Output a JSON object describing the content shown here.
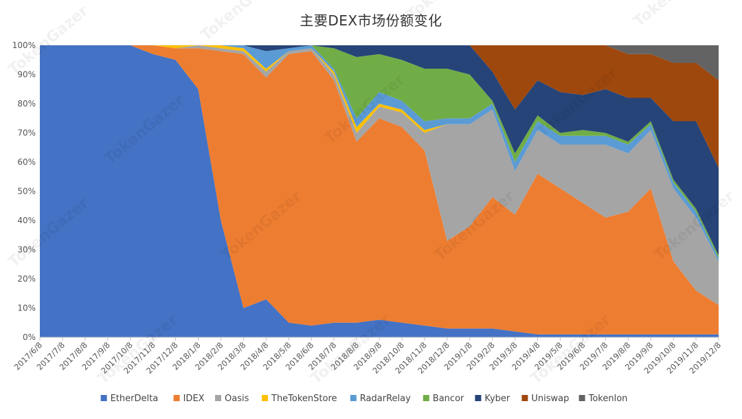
{
  "chart_data": {
    "type": "area",
    "title": "主要DEX市场份额变化",
    "stacked": "percent",
    "x": [
      "2017/6/8",
      "2017/7/8",
      "2017/8/8",
      "2017/9/8",
      "2017/10/8",
      "2017/11/8",
      "2017/12/8",
      "2018/1/8",
      "2018/2/8",
      "2018/3/8",
      "2018/4/8",
      "2018/5/8",
      "2018/6/8",
      "2018/7/8",
      "2018/8/8",
      "2018/9/8",
      "2018/10/8",
      "2018/11/8",
      "2018/12/8",
      "2019/1/8",
      "2019/2/8",
      "2019/3/8",
      "2019/4/8",
      "2019/5/8",
      "2019/6/8",
      "2019/7/8",
      "2019/8/8",
      "2019/9/8",
      "2019/10/8",
      "2019/11/8",
      "2019/12/8"
    ],
    "yticks": [
      "0%",
      "10%",
      "20%",
      "30%",
      "40%",
      "50%",
      "60%",
      "70%",
      "80%",
      "90%",
      "100%"
    ],
    "ylim": [
      0,
      100
    ],
    "legend_position": "bottom",
    "series": [
      {
        "name": "EtherDelta",
        "color": "#4472C4",
        "values": [
          100,
          100,
          100,
          100,
          100,
          97,
          95,
          85,
          40,
          10,
          13,
          5,
          4,
          5,
          5,
          6,
          5,
          4,
          3,
          3,
          3,
          2,
          1,
          1,
          1,
          1,
          1,
          1,
          1,
          1,
          1
        ]
      },
      {
        "name": "IDEX",
        "color": "#ED7D31",
        "values": [
          0,
          0,
          0,
          0,
          0,
          3,
          4,
          14,
          58,
          87,
          76,
          92,
          94,
          83,
          62,
          69,
          67,
          60,
          30,
          35,
          45,
          40,
          55,
          50,
          45,
          40,
          42,
          50,
          25,
          15,
          10
        ]
      },
      {
        "name": "Oasis",
        "color": "#A5A5A5",
        "values": [
          0,
          0,
          0,
          0,
          0,
          0,
          0,
          1,
          1,
          1,
          2,
          1,
          1,
          2,
          3,
          4,
          5,
          6,
          40,
          35,
          30,
          15,
          15,
          15,
          20,
          25,
          20,
          20,
          25,
          25,
          15
        ]
      },
      {
        "name": "TheTokenStore",
        "color": "#FFC000",
        "values": [
          0,
          0,
          0,
          0,
          0,
          0,
          1,
          0,
          1,
          1,
          1,
          0,
          0,
          1,
          2,
          1,
          1,
          1,
          0,
          0,
          0,
          0,
          0,
          0,
          0,
          0,
          0,
          0,
          0,
          0,
          0
        ]
      },
      {
        "name": "RadarRelay",
        "color": "#5B9BD5",
        "values": [
          0,
          0,
          0,
          0,
          0,
          0,
          0,
          0,
          0,
          1,
          6,
          1,
          1,
          1,
          3,
          4,
          3,
          3,
          2,
          2,
          2,
          3,
          3,
          3,
          3,
          3,
          3,
          2,
          2,
          2,
          1
        ]
      },
      {
        "name": "Bancor",
        "color": "#70AD47",
        "values": [
          0,
          0,
          0,
          0,
          0,
          0,
          0,
          0,
          0,
          0,
          0,
          0,
          0,
          7,
          21,
          13,
          14,
          18,
          17,
          15,
          1,
          3,
          2,
          1,
          2,
          1,
          1,
          1,
          1,
          1,
          1
        ]
      },
      {
        "name": "Kyber",
        "color": "#264478",
        "values": [
          0,
          0,
          0,
          0,
          0,
          0,
          0,
          0,
          0,
          0,
          2,
          1,
          0,
          1,
          4,
          3,
          5,
          8,
          8,
          10,
          10,
          15,
          12,
          14,
          12,
          15,
          15,
          8,
          20,
          30,
          30
        ]
      },
      {
        "name": "Uniswap",
        "color": "#9E480E",
        "values": [
          0,
          0,
          0,
          0,
          0,
          0,
          0,
          0,
          0,
          0,
          0,
          0,
          0,
          0,
          0,
          0,
          0,
          0,
          0,
          0,
          9,
          22,
          12,
          16,
          17,
          15,
          15,
          15,
          20,
          20,
          30
        ]
      },
      {
        "name": "Tokenlon",
        "color": "#636363",
        "values": [
          0,
          0,
          0,
          0,
          0,
          0,
          0,
          0,
          0,
          0,
          0,
          0,
          0,
          0,
          0,
          0,
          0,
          0,
          0,
          0,
          0,
          0,
          0,
          0,
          0,
          0,
          3,
          3,
          6,
          6,
          12
        ]
      }
    ]
  },
  "watermark": "TokenGazer"
}
